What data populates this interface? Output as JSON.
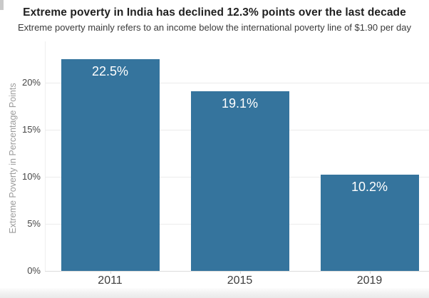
{
  "page": {
    "background_color": "#ffffff",
    "footer_strip_color": "#e9e9e9"
  },
  "chart_data": {
    "type": "bar",
    "title": "Extreme poverty in India has declined 12.3% points over the last decade",
    "subtitle": "Extreme poverty mainly refers to an income below the international poverty line of $1.90 per day",
    "categories": [
      "2011",
      "2015",
      "2019"
    ],
    "values": [
      22.5,
      19.1,
      10.2
    ],
    "bar_labels": [
      "22.5%",
      "19.1%",
      "10.2%"
    ],
    "xlabel": "",
    "ylabel": "Extreme Poverty in Percentage Points",
    "ylim": [
      0,
      24
    ],
    "yticks": [
      0,
      5,
      10,
      15,
      20
    ],
    "ytick_labels": [
      "0%",
      "5%",
      "10%",
      "15%",
      "20%"
    ],
    "grid": "horizontal",
    "legend_position": "none",
    "bar_color": "#35749d",
    "bar_label_color": "#ffffff",
    "gridline_color": "#ececec",
    "axis_line_color": "#dcdcdc"
  }
}
